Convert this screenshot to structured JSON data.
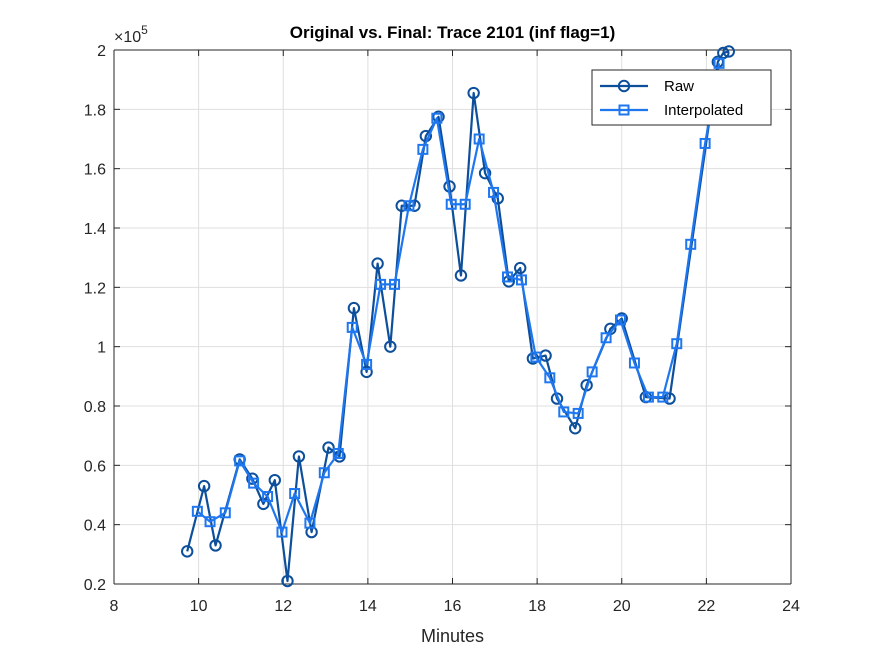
{
  "chart_data": {
    "type": "line",
    "title": "Original vs. Final: Trace 2101 (inf flag=1)",
    "xlabel": "Minutes",
    "ylabel": "",
    "xlim": [
      8,
      24
    ],
    "ylim": [
      0.2,
      2
    ],
    "y_exponent_label": "×10",
    "y_exponent_power": "5",
    "x_ticks": [
      "8",
      "10",
      "12",
      "14",
      "16",
      "18",
      "20",
      "22",
      "24"
    ],
    "x_tick_values": [
      8,
      10,
      12,
      14,
      16,
      18,
      20,
      22,
      24
    ],
    "y_ticks": [
      "0.2",
      "0.4",
      "0.6",
      "0.8",
      "1",
      "1.2",
      "1.4",
      "1.6",
      "1.8",
      "2"
    ],
    "y_tick_values": [
      0.2,
      0.4,
      0.6,
      0.8,
      1.0,
      1.2,
      1.4,
      1.6,
      1.8,
      2.0
    ],
    "grid": true,
    "legend_placement": "top-right",
    "series": [
      {
        "name": "Raw",
        "color": "#0d4f9b",
        "marker": "circle",
        "x": [
          9.73,
          10.13,
          10.4,
          10.97,
          11.27,
          11.53,
          11.8,
          12.1,
          12.37,
          12.67,
          13.07,
          13.33,
          13.67,
          13.97,
          14.23,
          14.53,
          14.8,
          15.1,
          15.37,
          15.67,
          15.93,
          16.2,
          16.5,
          16.77,
          17.07,
          17.33,
          17.6,
          17.9,
          18.2,
          18.47,
          18.9,
          19.17,
          19.73,
          20.0,
          20.57,
          21.13,
          22.27,
          22.4,
          22.53
        ],
        "y": [
          0.31,
          0.53,
          0.33,
          0.62,
          0.555,
          0.47,
          0.55,
          0.21,
          0.63,
          0.375,
          0.66,
          0.63,
          1.13,
          0.915,
          1.28,
          1.0,
          1.475,
          1.475,
          1.71,
          1.775,
          1.54,
          1.24,
          1.855,
          1.585,
          1.5,
          1.22,
          1.265,
          0.96,
          0.97,
          0.825,
          0.725,
          0.87,
          1.06,
          1.095,
          0.83,
          0.825,
          1.96,
          1.99,
          1.995
        ]
      },
      {
        "name": "Interpolated",
        "color": "#1f77f0",
        "marker": "square",
        "x": [
          9.97,
          10.27,
          10.63,
          10.97,
          11.3,
          11.63,
          11.97,
          12.27,
          12.63,
          12.97,
          13.3,
          13.63,
          13.97,
          14.3,
          14.63,
          14.97,
          15.3,
          15.63,
          15.97,
          16.3,
          16.63,
          16.97,
          17.3,
          17.63,
          17.97,
          18.3,
          18.63,
          18.97,
          19.3,
          19.63,
          19.97,
          20.3,
          20.63,
          20.97,
          21.3,
          21.63,
          21.97,
          22.3
        ],
        "y": [
          0.445,
          0.41,
          0.44,
          0.615,
          0.54,
          0.495,
          0.375,
          0.505,
          0.405,
          0.575,
          0.64,
          1.065,
          0.94,
          1.21,
          1.21,
          1.475,
          1.665,
          1.77,
          1.48,
          1.48,
          1.7,
          1.52,
          1.235,
          1.225,
          0.965,
          0.895,
          0.78,
          0.775,
          0.915,
          1.03,
          1.09,
          0.945,
          0.83,
          0.83,
          1.01,
          1.345,
          1.685,
          1.955
        ]
      }
    ]
  }
}
